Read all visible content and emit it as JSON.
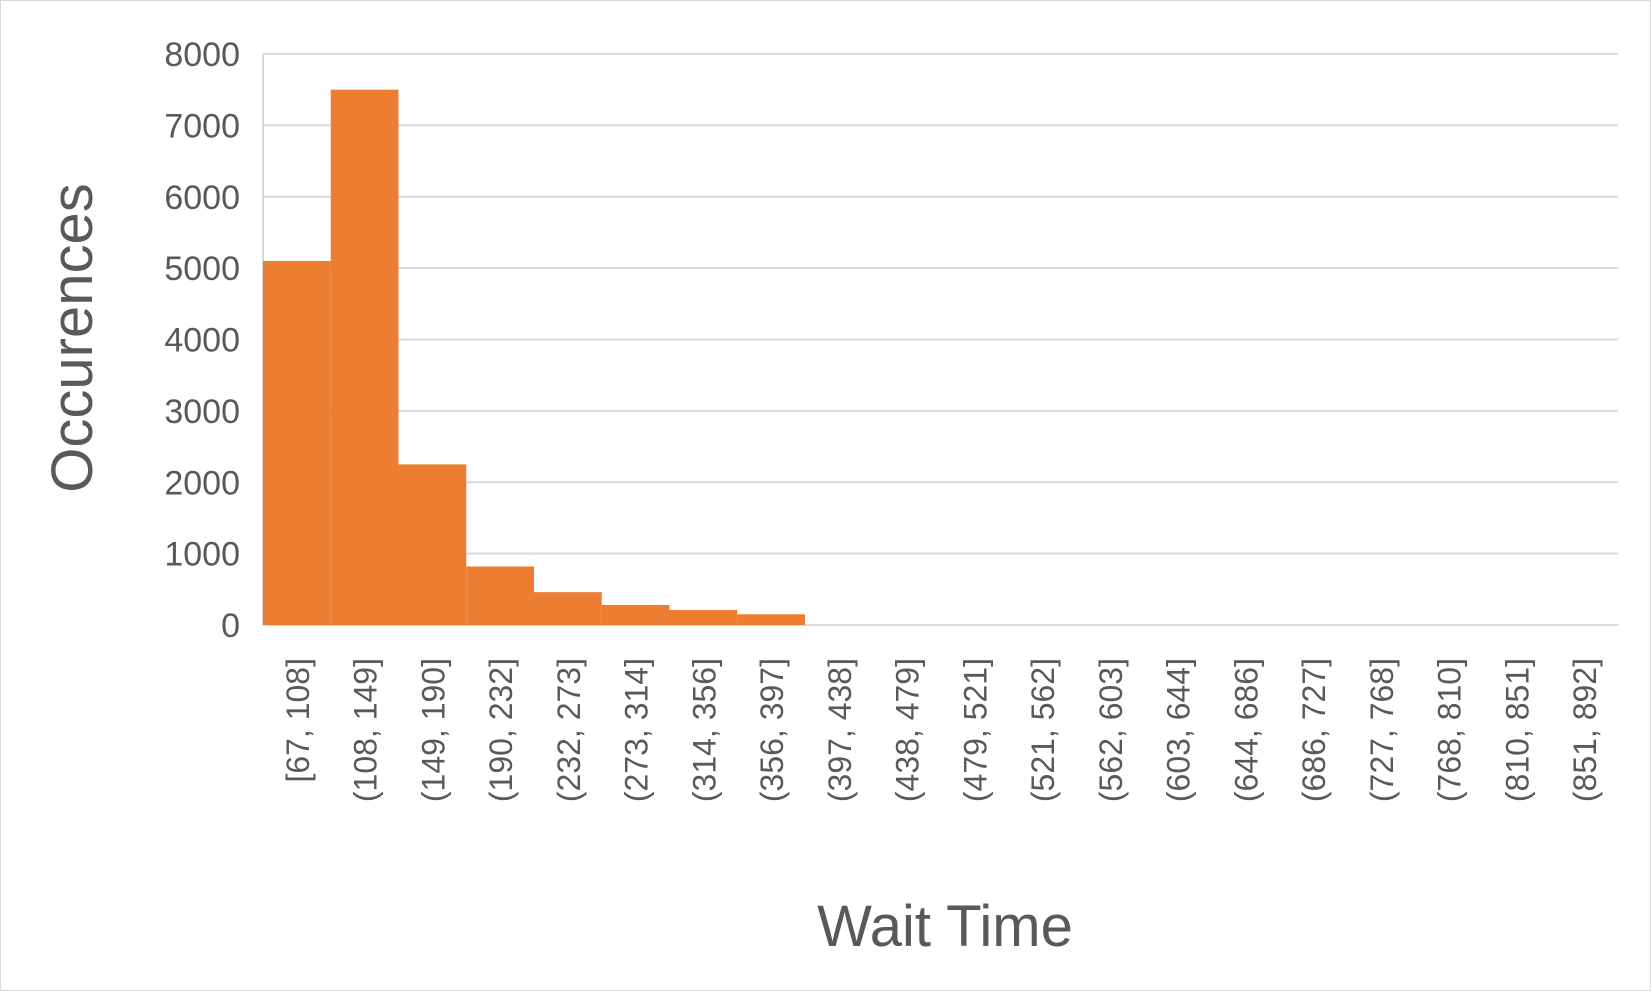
{
  "chart_data": {
    "type": "bar",
    "xlabel": "Wait Time",
    "ylabel": "Occurences",
    "ylim": [
      0,
      8000
    ],
    "yticks": [
      "0",
      "1000",
      "2000",
      "3000",
      "4000",
      "5000",
      "6000",
      "7000",
      "8000"
    ],
    "grid": true,
    "bar_color": "#ED7D31",
    "categories": [
      "[67, 108]",
      "(108, 149]",
      "(149, 190]",
      "(190, 232]",
      "(232, 273]",
      "(273, 314]",
      "(314, 356]",
      "(356, 397]",
      "(397, 438]",
      "(438, 479]",
      "(479, 521]",
      "(521, 562]",
      "(562, 603]",
      "(603, 644]",
      "(644, 686]",
      "(686, 727]",
      "(727, 768]",
      "(768, 810]",
      "(810, 851]",
      "(851, 892]"
    ],
    "values": [
      5100,
      7500,
      2250,
      820,
      460,
      280,
      210,
      150,
      0,
      0,
      0,
      0,
      0,
      0,
      0,
      0,
      0,
      0,
      0,
      0
    ]
  }
}
